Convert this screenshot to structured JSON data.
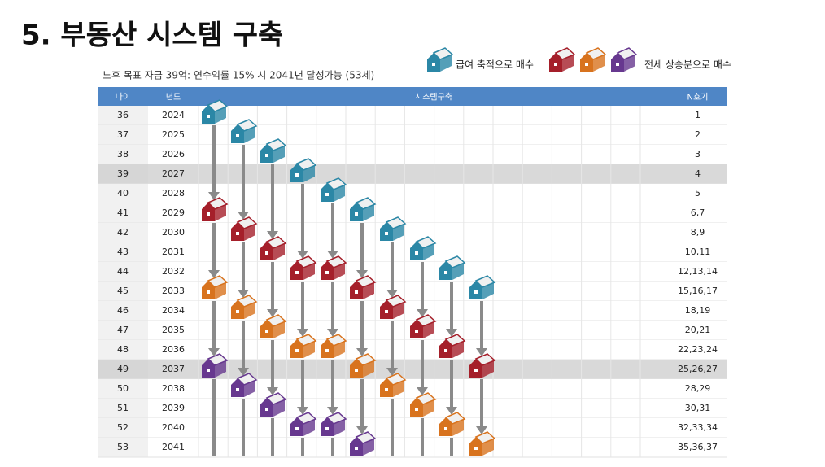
{
  "header": {
    "title": "5. 부동산 시스템 구축",
    "subtitle": "노후 목표 자금 39억: 연수익률 15% 시 2041년 달성가능 (53세)"
  },
  "legend": [
    "급여 축적으로 매수",
    "전세 상승분으로 매수"
  ],
  "table": {
    "columns": [
      "나이",
      "년도",
      "시스템구축",
      "N호기"
    ],
    "rows": [
      [
        36,
        2024,
        "1"
      ],
      [
        37,
        2025,
        "2"
      ],
      [
        38,
        2026,
        "3"
      ],
      [
        39,
        2027,
        "4"
      ],
      [
        40,
        2028,
        "5"
      ],
      [
        41,
        2029,
        "6,7"
      ],
      [
        42,
        2030,
        "8,9"
      ],
      [
        43,
        2031,
        "10,11"
      ],
      [
        44,
        2032,
        "12,13,14"
      ],
      [
        45,
        2033,
        "15,16,17"
      ],
      [
        46,
        2034,
        "18,19"
      ],
      [
        47,
        2035,
        "20,21"
      ],
      [
        48,
        2036,
        "22,23,24"
      ],
      [
        49,
        2037,
        "25,26,27"
      ],
      [
        50,
        2038,
        "28,29"
      ],
      [
        51,
        2039,
        "30,31"
      ],
      [
        52,
        2040,
        "32,33,34"
      ],
      [
        53,
        2041,
        "35,36,37"
      ]
    ]
  }
}
